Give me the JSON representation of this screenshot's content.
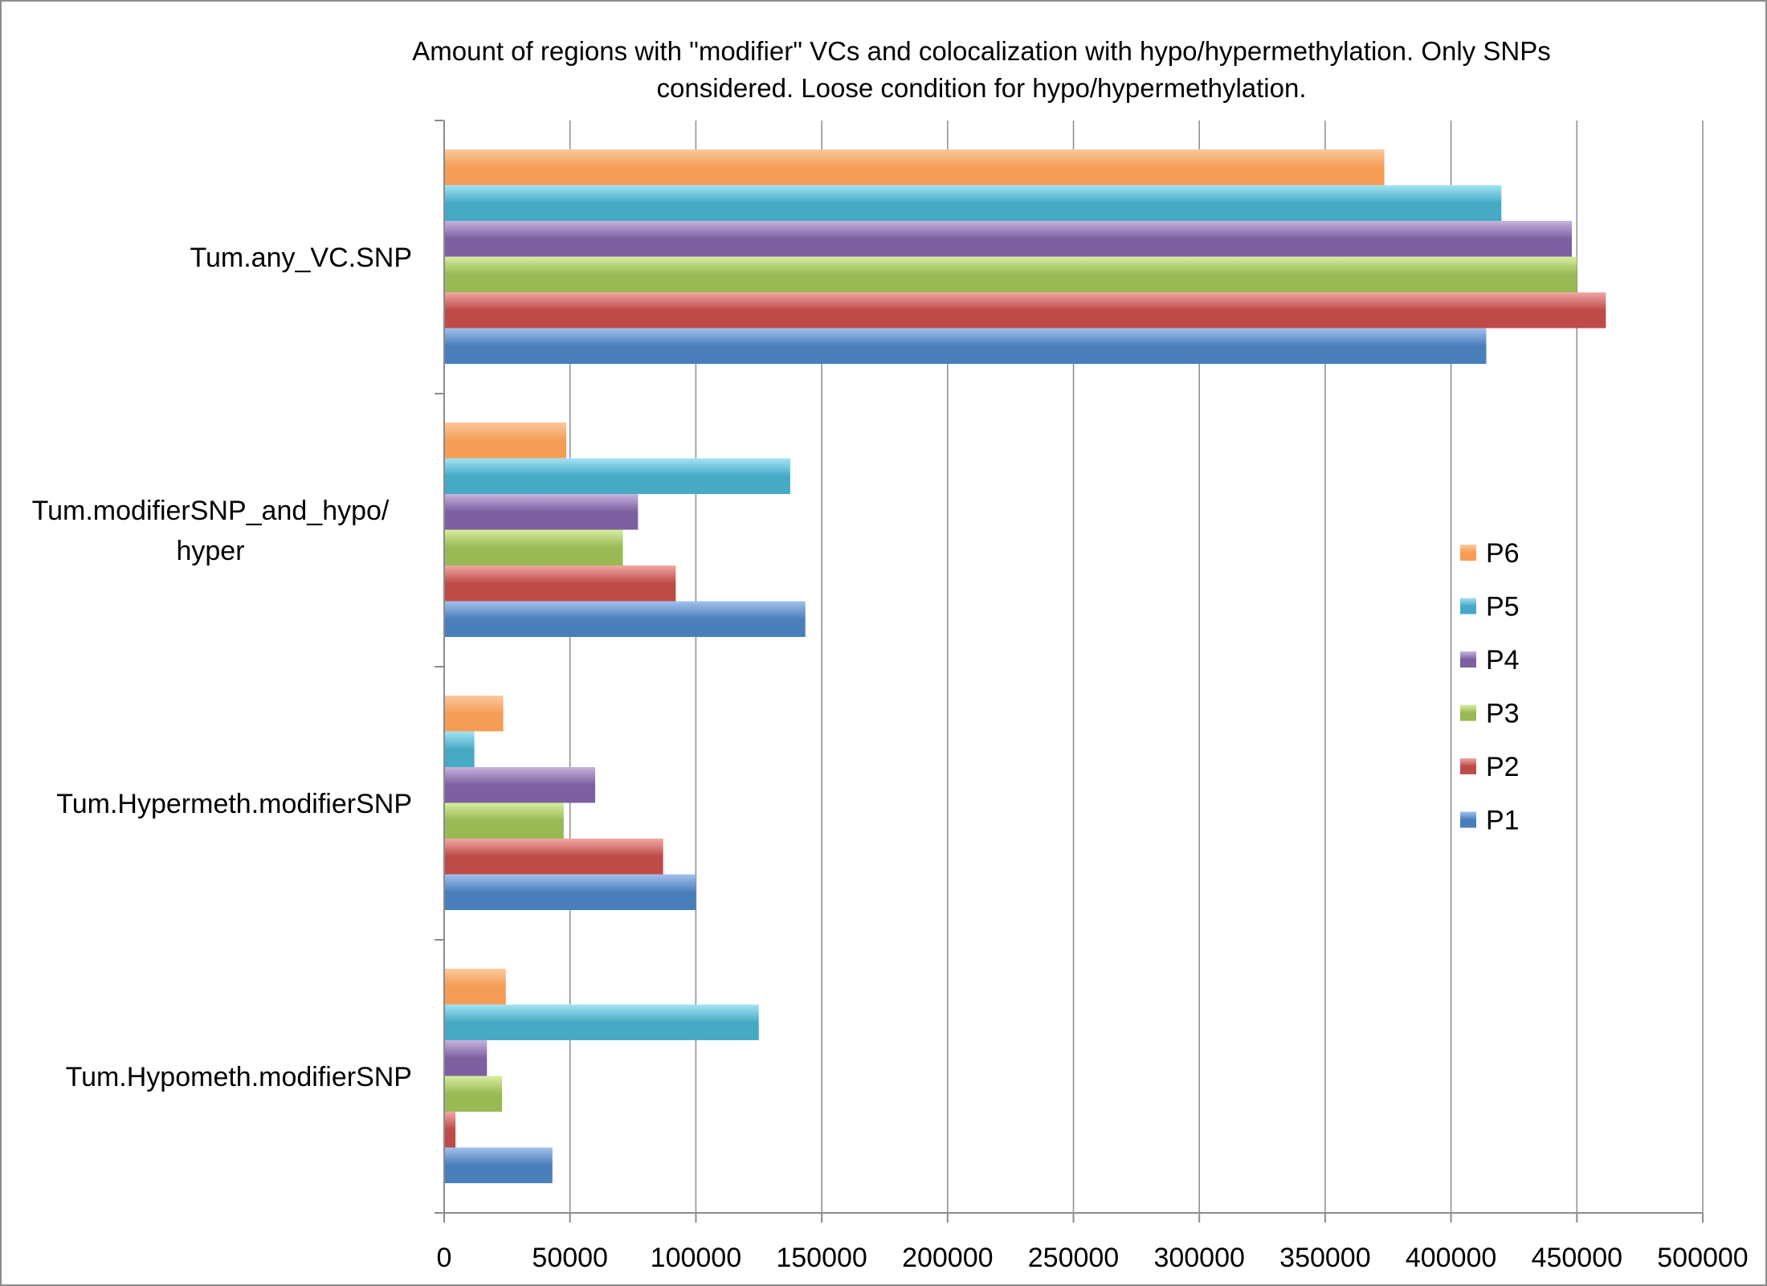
{
  "chart_data": {
    "type": "bar",
    "orientation": "horizontal",
    "title": "Amount of regions with \"modifier\" VCs and colocalization with hypo/hypermethylation. Only SNPs considered. Loose condition for hypo/hypermethylation.",
    "title_lines": [
      "Amount of regions with \"modifier\" VCs and colocalization with hypo/hypermethylation. Only SNPs",
      "considered. Loose condition for hypo/hypermethylation."
    ],
    "xlabel": "",
    "ylabel": "",
    "xlim": [
      0,
      500000
    ],
    "x_ticks": [
      0,
      50000,
      100000,
      150000,
      200000,
      250000,
      300000,
      350000,
      400000,
      450000,
      500000
    ],
    "x_tick_labels": [
      "0",
      "50000",
      "100000",
      "150000",
      "200000",
      "250000",
      "300000",
      "350000",
      "400000",
      "450000",
      "500000"
    ],
    "grid": true,
    "legend_position": "right",
    "categories": [
      "Tum.any_VC.SNP",
      "Tum.modifierSNP_and_hypo/hyper",
      "Tum.Hypermeth.modifierSNP",
      "Tum.Hypometh.modifierSNP"
    ],
    "category_label_lines": [
      [
        "Tum.any_VC.SNP"
      ],
      [
        "Tum.modifierSNP_and_hypo/",
        "hyper"
      ],
      [
        "Tum.Hypermeth.modifierSNP"
      ],
      [
        "Tum.Hypometh.modifierSNP"
      ]
    ],
    "series": [
      {
        "name": "P1",
        "color": "#4a7ebb",
        "light": "#a3c1ec",
        "values": [
          414000,
          143500,
          100000,
          43000
        ]
      },
      {
        "name": "P2",
        "color": "#be4b48",
        "light": "#f1a7a5",
        "values": [
          461500,
          92000,
          87000,
          4500
        ]
      },
      {
        "name": "P3",
        "color": "#98b954",
        "light": "#d7ee9f",
        "values": [
          450000,
          71000,
          47500,
          23000
        ]
      },
      {
        "name": "P4",
        "color": "#7d60a0",
        "light": "#c6b3de",
        "values": [
          448000,
          77000,
          60000,
          17000
        ]
      },
      {
        "name": "P5",
        "color": "#46aac5",
        "light": "#a3e4f5",
        "values": [
          420000,
          137500,
          12000,
          125000
        ]
      },
      {
        "name": "P6",
        "color": "#f59d56",
        "light": "#fcc99c",
        "values": [
          373500,
          48500,
          23500,
          24500
        ]
      }
    ]
  }
}
